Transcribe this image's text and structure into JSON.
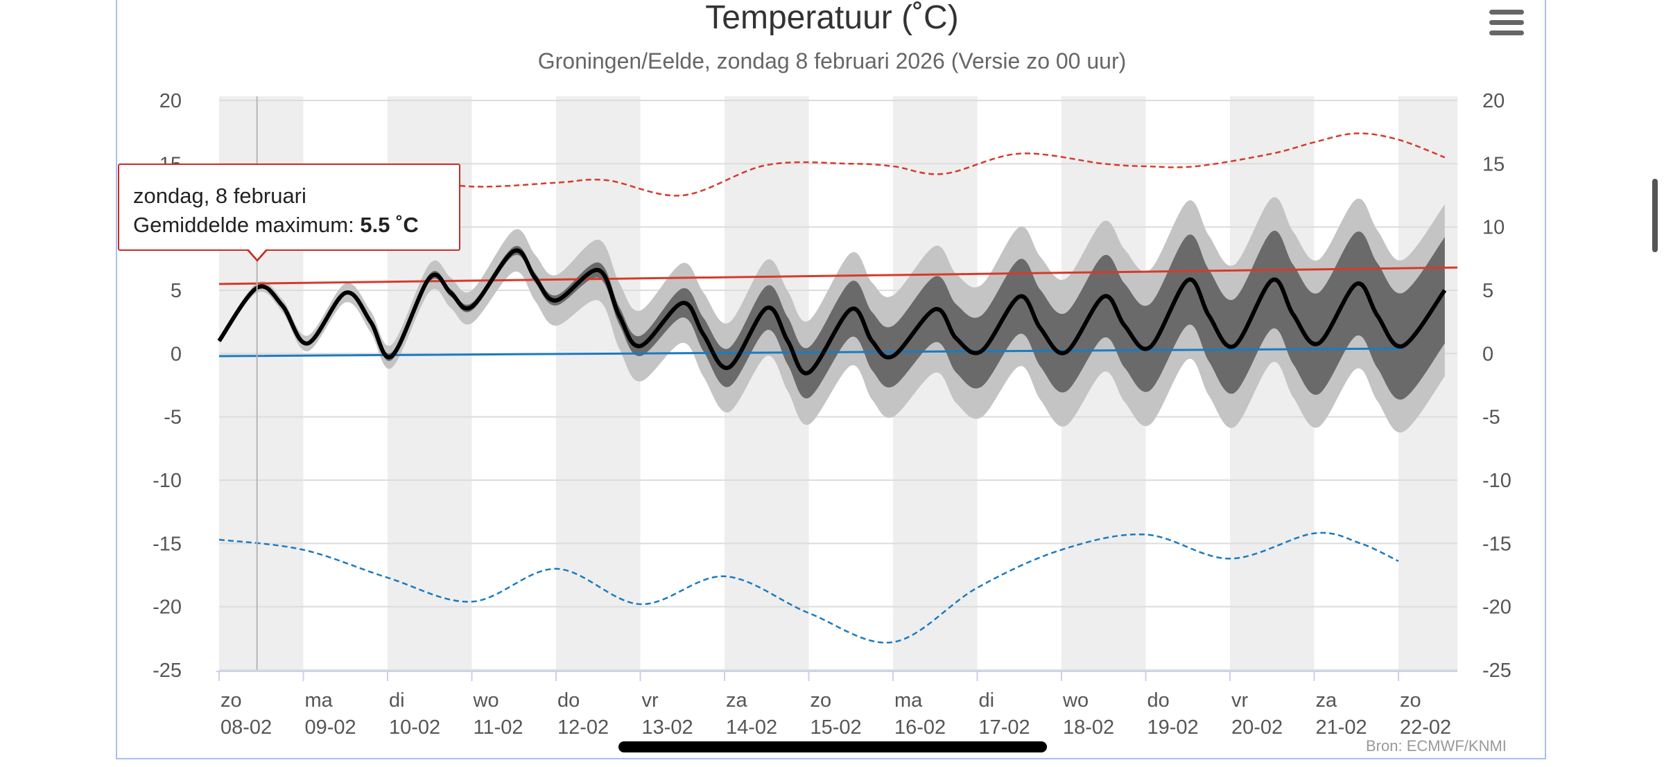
{
  "chart_data": {
    "type": "line",
    "title": "Temperatuur (˚C)",
    "subtitle": "Groningen/Eelde, zondag 8 februari 2026 (Versie zo 00 uur)",
    "ylim": [
      -25,
      20
    ],
    "y_ticks": [
      "20",
      "15",
      "10",
      "5",
      "0",
      "-5",
      "-10",
      "-15",
      "-20",
      "-25"
    ],
    "y_tick_values": [
      20,
      15,
      10,
      5,
      0,
      -5,
      -10,
      -15,
      -20,
      -25
    ],
    "x_day_labels": [
      "zo",
      "ma",
      "di",
      "wo",
      "do",
      "vr",
      "za",
      "zo",
      "ma",
      "di",
      "wo",
      "do",
      "vr",
      "za",
      "zo"
    ],
    "x_date_labels": [
      "08-02",
      "09-02",
      "10-02",
      "11-02",
      "12-02",
      "13-02",
      "14-02",
      "15-02",
      "16-02",
      "17-02",
      "18-02",
      "19-02",
      "20-02",
      "21-02",
      "22-02"
    ],
    "x_range_days": [
      0,
      14.7
    ],
    "grid": true,
    "colors": {
      "ensemble": "#000000",
      "inner_band": "#6a6a6a",
      "outer_band": "#c4c4c4",
      "max_line": "#d63a2a",
      "min_line": "#1a7bc0",
      "weekend_shade": "#eeeeee"
    },
    "ensemble_mean": [
      [
        0,
        1
      ],
      [
        0.45,
        5.2
      ],
      [
        0.75,
        3.8
      ],
      [
        1.05,
        0.8
      ],
      [
        1.5,
        4.8
      ],
      [
        1.8,
        2.5
      ],
      [
        2.05,
        -0.2
      ],
      [
        2.5,
        6.0
      ],
      [
        2.75,
        4.8
      ],
      [
        3.0,
        3.7
      ],
      [
        3.5,
        8.1
      ],
      [
        3.75,
        6.0
      ],
      [
        4.0,
        4.2
      ],
      [
        4.5,
        6.6
      ],
      [
        4.75,
        3.0
      ],
      [
        5.0,
        0.6
      ],
      [
        5.5,
        4.0
      ],
      [
        5.75,
        1.5
      ],
      [
        6.05,
        -1.1
      ],
      [
        6.5,
        3.6
      ],
      [
        6.75,
        1.0
      ],
      [
        7.0,
        -1.5
      ],
      [
        7.5,
        3.5
      ],
      [
        7.75,
        1.0
      ],
      [
        8.0,
        -0.2
      ],
      [
        8.5,
        3.5
      ],
      [
        8.75,
        1.2
      ],
      [
        9.05,
        0.2
      ],
      [
        9.5,
        4.5
      ],
      [
        9.75,
        2.0
      ],
      [
        10.05,
        0.1
      ],
      [
        10.5,
        4.5
      ],
      [
        10.75,
        2.2
      ],
      [
        11.05,
        0.5
      ],
      [
        11.5,
        5.8
      ],
      [
        11.75,
        3.0
      ],
      [
        12.05,
        0.6
      ],
      [
        12.5,
        5.8
      ],
      [
        12.75,
        3.1
      ],
      [
        13.05,
        0.8
      ],
      [
        13.5,
        5.5
      ],
      [
        13.75,
        3.0
      ],
      [
        14.05,
        0.6
      ],
      [
        14.55,
        5.0
      ]
    ],
    "inner_spread": [
      0,
      0,
      0.3,
      0.3,
      0.4,
      0.8,
      1.5,
      2.0,
      2.4,
      2.8,
      3.1,
      3.4,
      3.7,
      4.0,
      4.2
    ],
    "outer_spread": [
      0.2,
      0.6,
      0.9,
      1.3,
      2.0,
      2.8,
      3.5,
      4.1,
      4.8,
      5.2,
      5.8,
      6.1,
      6.4,
      6.6,
      6.8
    ],
    "climate_max": [
      [
        0,
        5.5
      ],
      [
        14.7,
        6.8
      ]
    ],
    "climate_min": [
      [
        0,
        -0.2
      ],
      [
        14.05,
        0.4
      ]
    ],
    "extreme_max": [
      [
        0,
        14.8
      ],
      [
        1,
        13.5
      ],
      [
        2,
        14.0
      ],
      [
        3,
        13.2
      ],
      [
        4,
        13.5
      ],
      [
        4.6,
        13.7
      ],
      [
        5.5,
        12.5
      ],
      [
        6.5,
        14.9
      ],
      [
        7.5,
        15.0
      ],
      [
        8.0,
        14.8
      ],
      [
        8.6,
        14.2
      ],
      [
        9.5,
        15.8
      ],
      [
        10.5,
        15.0
      ],
      [
        11.0,
        14.8
      ],
      [
        11.6,
        14.8
      ],
      [
        12.5,
        15.8
      ],
      [
        13.0,
        16.7
      ],
      [
        13.5,
        17.4
      ],
      [
        14.0,
        16.9
      ],
      [
        14.55,
        15.5
      ]
    ],
    "extreme_min": [
      [
        0,
        -14.7
      ],
      [
        1,
        -15.5
      ],
      [
        2,
        -17.7
      ],
      [
        3,
        -19.6
      ],
      [
        4,
        -17.0
      ],
      [
        5,
        -19.8
      ],
      [
        6,
        -17.6
      ],
      [
        7,
        -20.5
      ],
      [
        8,
        -22.8
      ],
      [
        9,
        -18.5
      ],
      [
        10,
        -15.5
      ],
      [
        11,
        -14.3
      ],
      [
        12,
        -16.2
      ],
      [
        13,
        -14.2
      ],
      [
        13.55,
        -15.0
      ],
      [
        14.0,
        -16.4
      ]
    ]
  },
  "header": {
    "menu_icon": "hamburger-menu-icon"
  },
  "tooltip": {
    "date": "zondag, 8 februari",
    "label": "Gemiddelde maximum: ",
    "value": "5.5 ˚C"
  },
  "credits": "Bron: ECMWF/KNMI"
}
